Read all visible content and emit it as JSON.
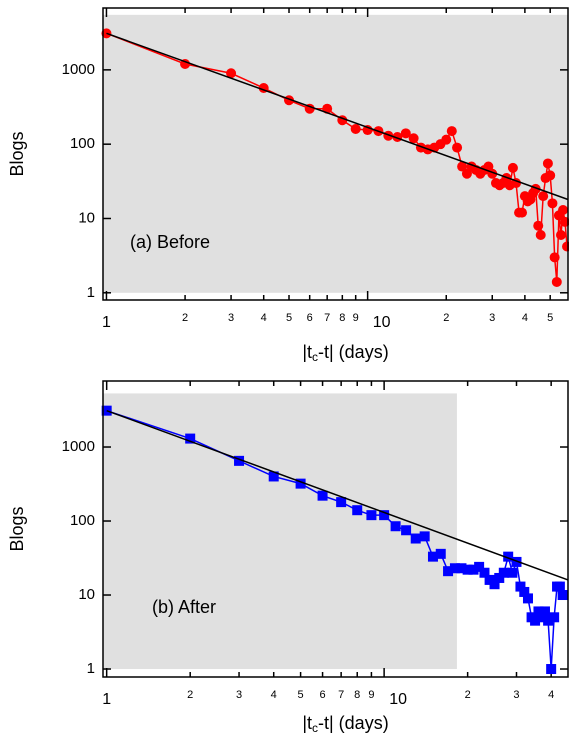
{
  "chart_data": [
    {
      "type": "line",
      "xscale": "log",
      "yscale": "log",
      "xlabel": [
        "|t",
        "c",
        "-t| (days)"
      ],
      "ylabel": "Blogs",
      "annotation": "(a) Before",
      "xlim": [
        0.97,
        58.5
      ],
      "ylim": [
        0.8,
        6800
      ],
      "xticks": [
        1,
        2,
        3,
        4,
        5,
        6,
        7,
        8,
        9,
        10,
        {
          "value": 20,
          "label": "2"
        },
        {
          "value": 30,
          "label": "3"
        },
        {
          "value": 40,
          "label": "4"
        },
        {
          "value": 50,
          "label": "5"
        }
      ],
      "yticks": [
        1,
        10,
        100,
        1000
      ],
      "shade": {
        "x": [
          0.97,
          58.5
        ],
        "y": [
          1,
          5500
        ],
        "color": "#e0e0e0"
      },
      "fit": {
        "x": [
          1,
          58.5
        ],
        "values": [
          3100,
          18
        ],
        "color": "#000000"
      },
      "series": [
        {
          "color": "#ff0000",
          "marker": "circle",
          "x": [
            1,
            2,
            3,
            4,
            5,
            6,
            7,
            8,
            9,
            10,
            11,
            12,
            13,
            14,
            15,
            16,
            17,
            18,
            19,
            20,
            21,
            22,
            23,
            24,
            25,
            26,
            27,
            28,
            29,
            30,
            31,
            32,
            33,
            34,
            35,
            36,
            37,
            38,
            39,
            40,
            41,
            42,
            43,
            44,
            45,
            46,
            47,
            48,
            49,
            50,
            51,
            52,
            53,
            54,
            55,
            56,
            57,
            58
          ],
          "values": [
            3100,
            1200,
            900,
            570,
            390,
            300,
            300,
            210,
            160,
            155,
            150,
            130,
            125,
            140,
            120,
            90,
            85,
            90,
            100,
            115,
            150,
            90,
            50,
            40,
            50,
            45,
            40,
            45,
            50,
            40,
            30,
            28,
            30,
            35,
            28,
            48,
            30,
            12,
            12,
            20,
            17,
            18,
            22,
            25,
            8,
            6,
            20,
            35,
            55,
            38,
            16,
            3,
            1.4,
            11,
            6,
            13,
            9,
            4.2
          ]
        }
      ]
    },
    {
      "type": "line",
      "xscale": "log",
      "yscale": "log",
      "xlabel": [
        "|t",
        "c",
        "-t| (days)"
      ],
      "ylabel": "Blogs",
      "annotation": "(b) After",
      "xlim": [
        0.97,
        46
      ],
      "ylim": [
        0.78,
        7800
      ],
      "xticks": [
        1,
        2,
        3,
        4,
        5,
        6,
        7,
        8,
        9,
        10,
        {
          "value": 20,
          "label": "2"
        },
        {
          "value": 30,
          "label": "3"
        },
        {
          "value": 40,
          "label": "4"
        }
      ],
      "yticks": [
        1,
        10,
        100,
        1000
      ],
      "shade": {
        "x": [
          0.97,
          18.3
        ],
        "y": [
          1,
          5300
        ],
        "color": "#e0e0e0"
      },
      "fit": {
        "x": [
          1,
          46
        ],
        "values": [
          3100,
          16
        ],
        "color": "#000000"
      },
      "series": [
        {
          "color": "#0000ff",
          "marker": "square",
          "x": [
            1,
            2,
            3,
            4,
            5,
            6,
            7,
            8,
            9,
            10,
            11,
            12,
            13,
            14,
            15,
            16,
            17,
            18,
            19,
            20,
            21,
            22,
            23,
            24,
            25,
            26,
            27,
            28,
            29,
            30,
            31,
            32,
            33,
            34,
            35,
            36,
            37,
            38,
            39,
            40,
            41,
            42,
            43,
            44
          ],
          "values": [
            3100,
            1300,
            650,
            400,
            320,
            220,
            180,
            140,
            120,
            120,
            85,
            75,
            58,
            62,
            33,
            36,
            21,
            23,
            23,
            22,
            22,
            24,
            20,
            16,
            14,
            17,
            20,
            33,
            20,
            28,
            13,
            11,
            9,
            5,
            4.5,
            6,
            5,
            6,
            4.5,
            1,
            5,
            13,
            13,
            10
          ]
        }
      ]
    }
  ]
}
